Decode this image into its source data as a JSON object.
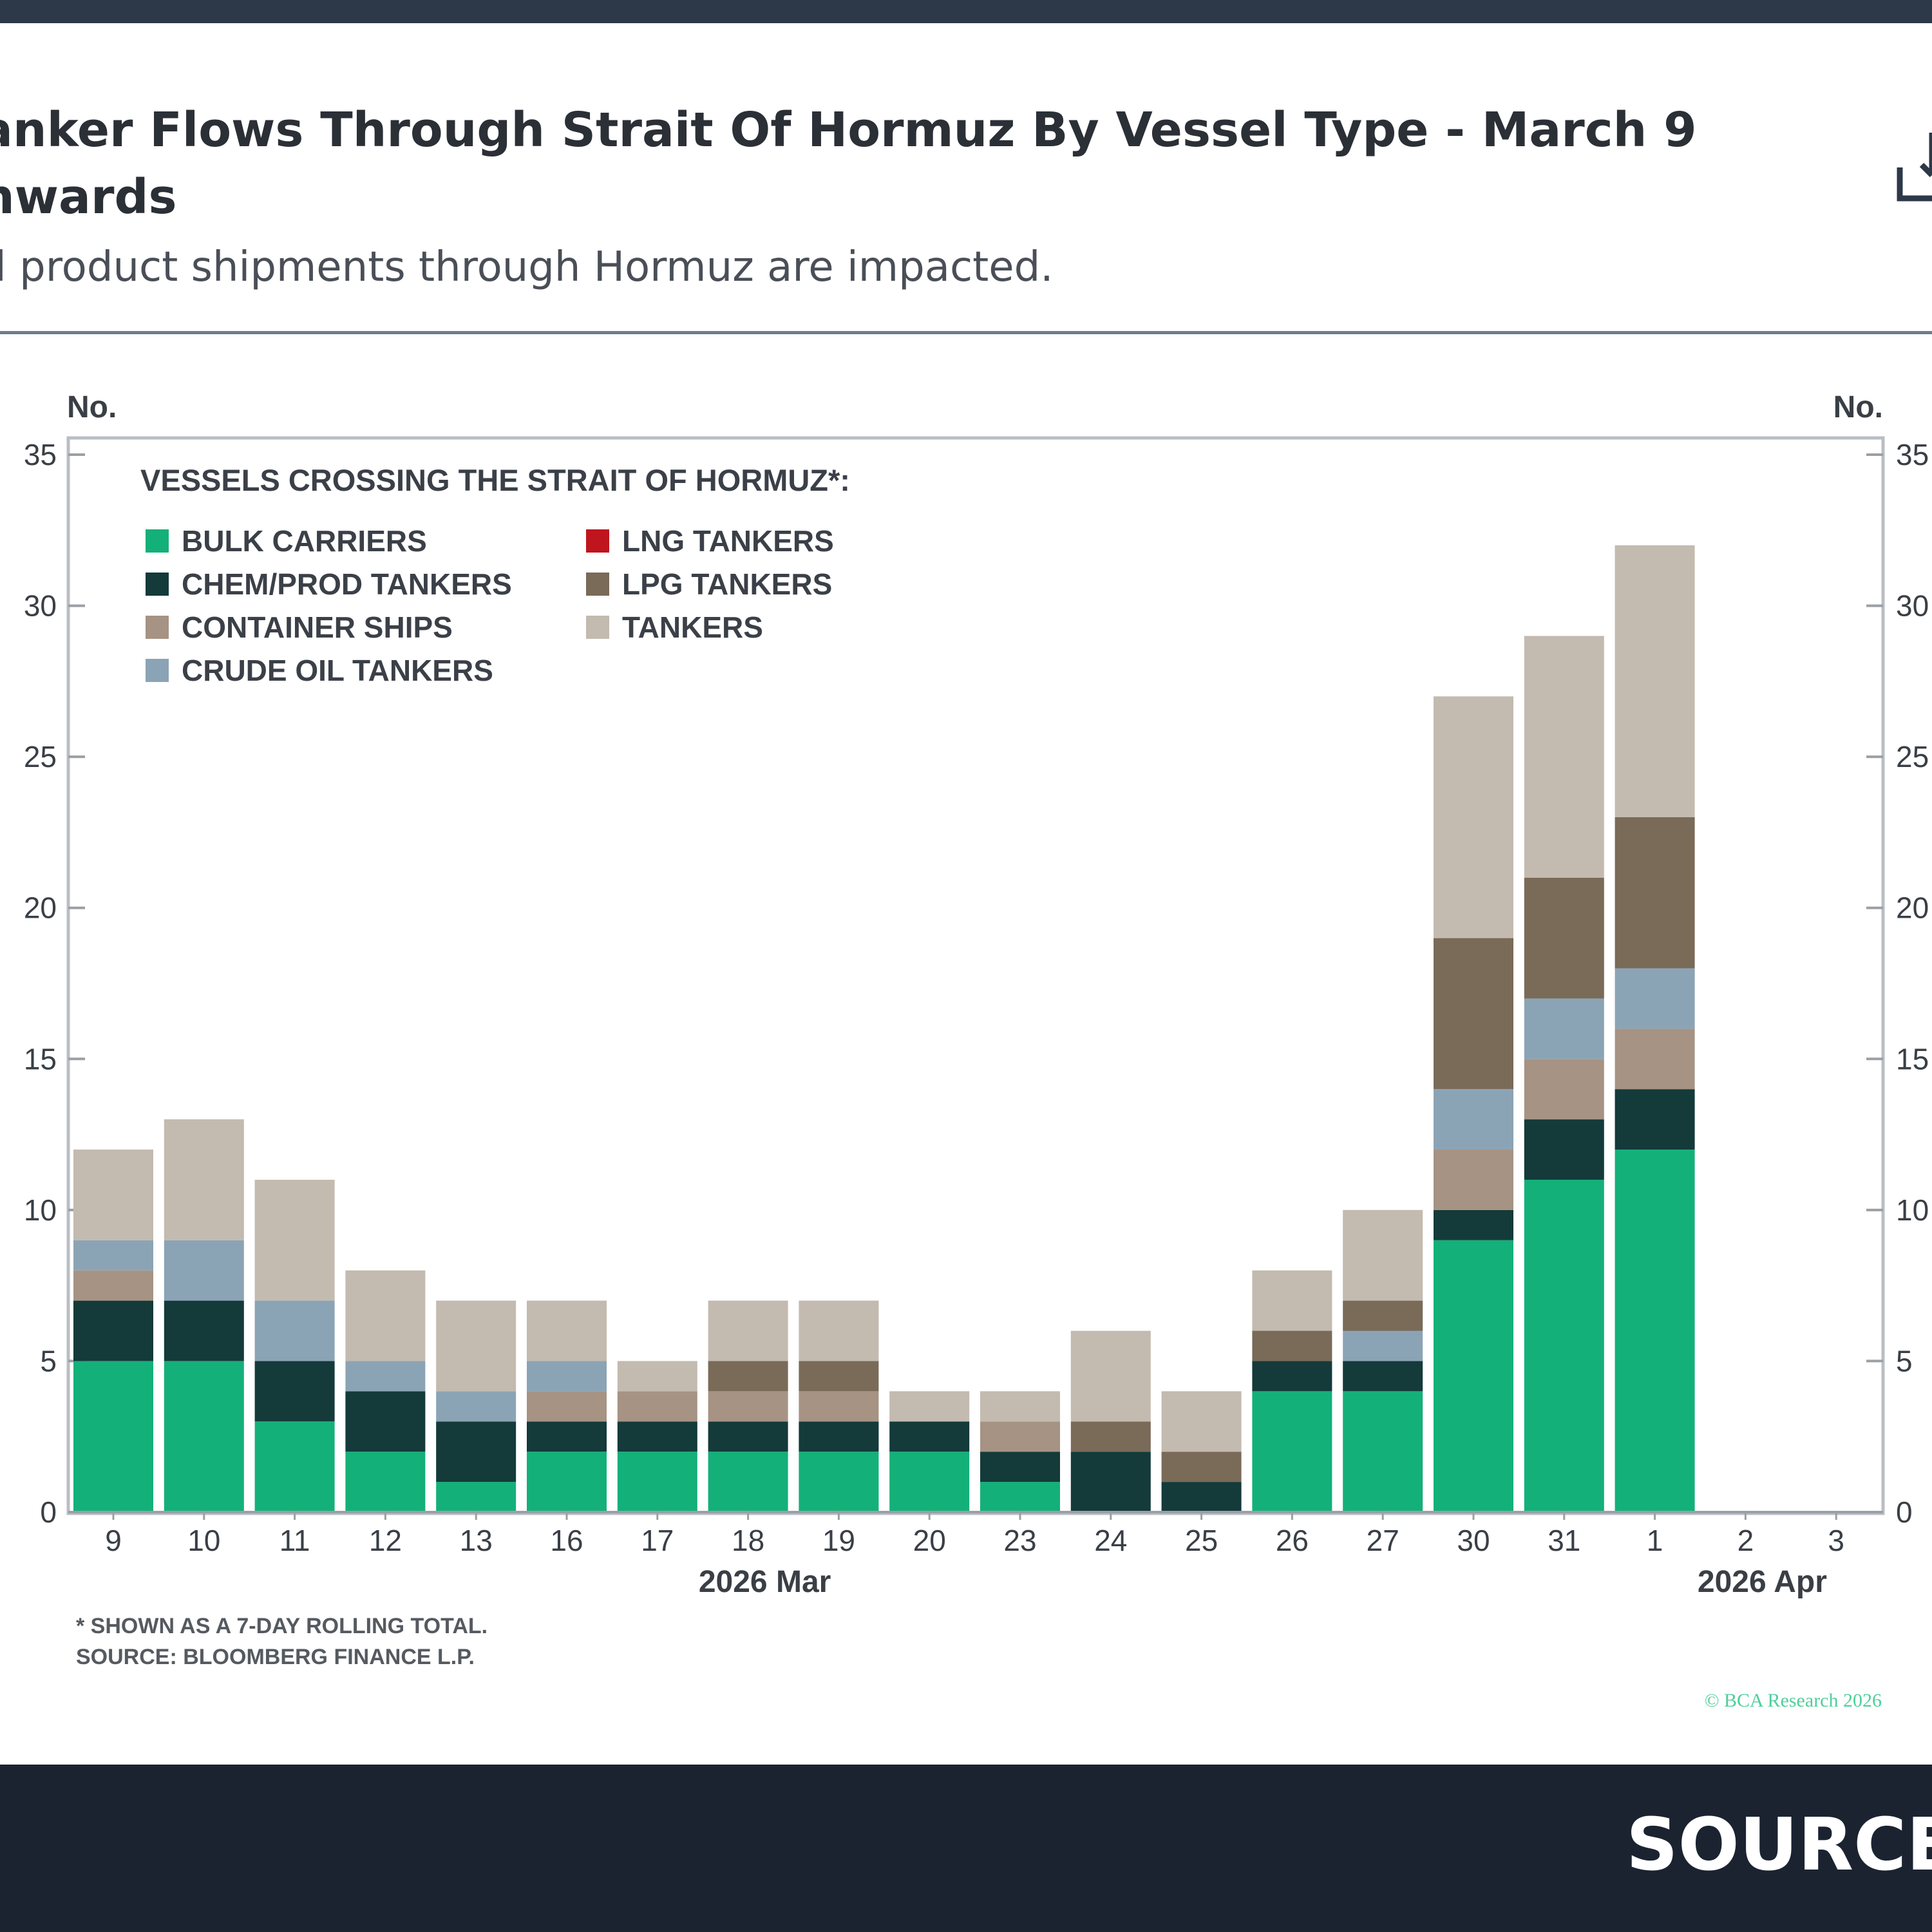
{
  "page": {
    "title_line1": "anker Flows Through Strait Of Hormuz By Vessel Type - March 9",
    "title_line2": "nwards",
    "subtitle": "l product shipments through Hormuz are impacted.",
    "source_banner": "SOURCE",
    "download_icon": "download-icon"
  },
  "chart_data": {
    "type": "bar",
    "stacked": true,
    "left_axis_label": "No.",
    "right_axis_label": "No.",
    "ylim": [
      0,
      35
    ],
    "yticks": [
      0,
      5,
      10,
      15,
      20,
      25,
      30,
      35
    ],
    "categories": [
      "9",
      "10",
      "11",
      "12",
      "13",
      "16",
      "17",
      "18",
      "19",
      "20",
      "23",
      "24",
      "25",
      "26",
      "27",
      "30",
      "31",
      "1",
      "2",
      "3"
    ],
    "month_labels": [
      {
        "text": "2026 Mar",
        "under": "18"
      },
      {
        "text": "2026 Apr",
        "under": "2"
      }
    ],
    "legend_title": "VESSELS CROSSING THE STRAIT OF HORMUZ*:",
    "series": [
      {
        "name": "BULK CARRIERS",
        "color": "#14b07a",
        "values": [
          5,
          5,
          3,
          2,
          1,
          2,
          2,
          2,
          2,
          2,
          1,
          0,
          0,
          4,
          4,
          9,
          11,
          12,
          0,
          0
        ]
      },
      {
        "name": "CHEM/PROD TANKERS",
        "color": "#143a3a",
        "values": [
          2,
          2,
          2,
          2,
          2,
          1,
          1,
          1,
          1,
          1,
          1,
          2,
          1,
          1,
          1,
          1,
          2,
          2,
          0,
          0
        ]
      },
      {
        "name": "CONTAINER SHIPS",
        "color": "#a69383",
        "values": [
          1,
          0,
          0,
          0,
          0,
          1,
          1,
          1,
          1,
          0,
          1,
          0,
          0,
          0,
          0,
          2,
          2,
          2,
          0,
          0
        ]
      },
      {
        "name": "CRUDE OIL TANKERS",
        "color": "#8ba4b5",
        "values": [
          1,
          2,
          2,
          1,
          1,
          1,
          0,
          0,
          0,
          0,
          0,
          0,
          0,
          0,
          1,
          2,
          2,
          2,
          0,
          0
        ]
      },
      {
        "name": "LNG TANKERS",
        "color": "#c0141e",
        "values": [
          0,
          0,
          0,
          0,
          0,
          0,
          0,
          0,
          0,
          0,
          0,
          0,
          0,
          0,
          0,
          0,
          0,
          0,
          0,
          0
        ]
      },
      {
        "name": "LPG TANKERS",
        "color": "#7a6a58",
        "values": [
          0,
          0,
          0,
          0,
          0,
          0,
          0,
          1,
          1,
          0,
          0,
          1,
          1,
          1,
          1,
          5,
          4,
          5,
          0,
          0
        ]
      },
      {
        "name": "TANKERS",
        "color": "#c3bab0",
        "values": [
          3,
          4,
          4,
          3,
          3,
          2,
          1,
          2,
          2,
          1,
          1,
          3,
          2,
          2,
          3,
          8,
          8,
          9,
          0,
          0
        ]
      }
    ],
    "footnote_1": "* SHOWN AS A 7-DAY ROLLING TOTAL.",
    "footnote_2": "SOURCE: BLOOMBERG FINANCE L.P.",
    "copyright": "© BCA Research 2026"
  }
}
